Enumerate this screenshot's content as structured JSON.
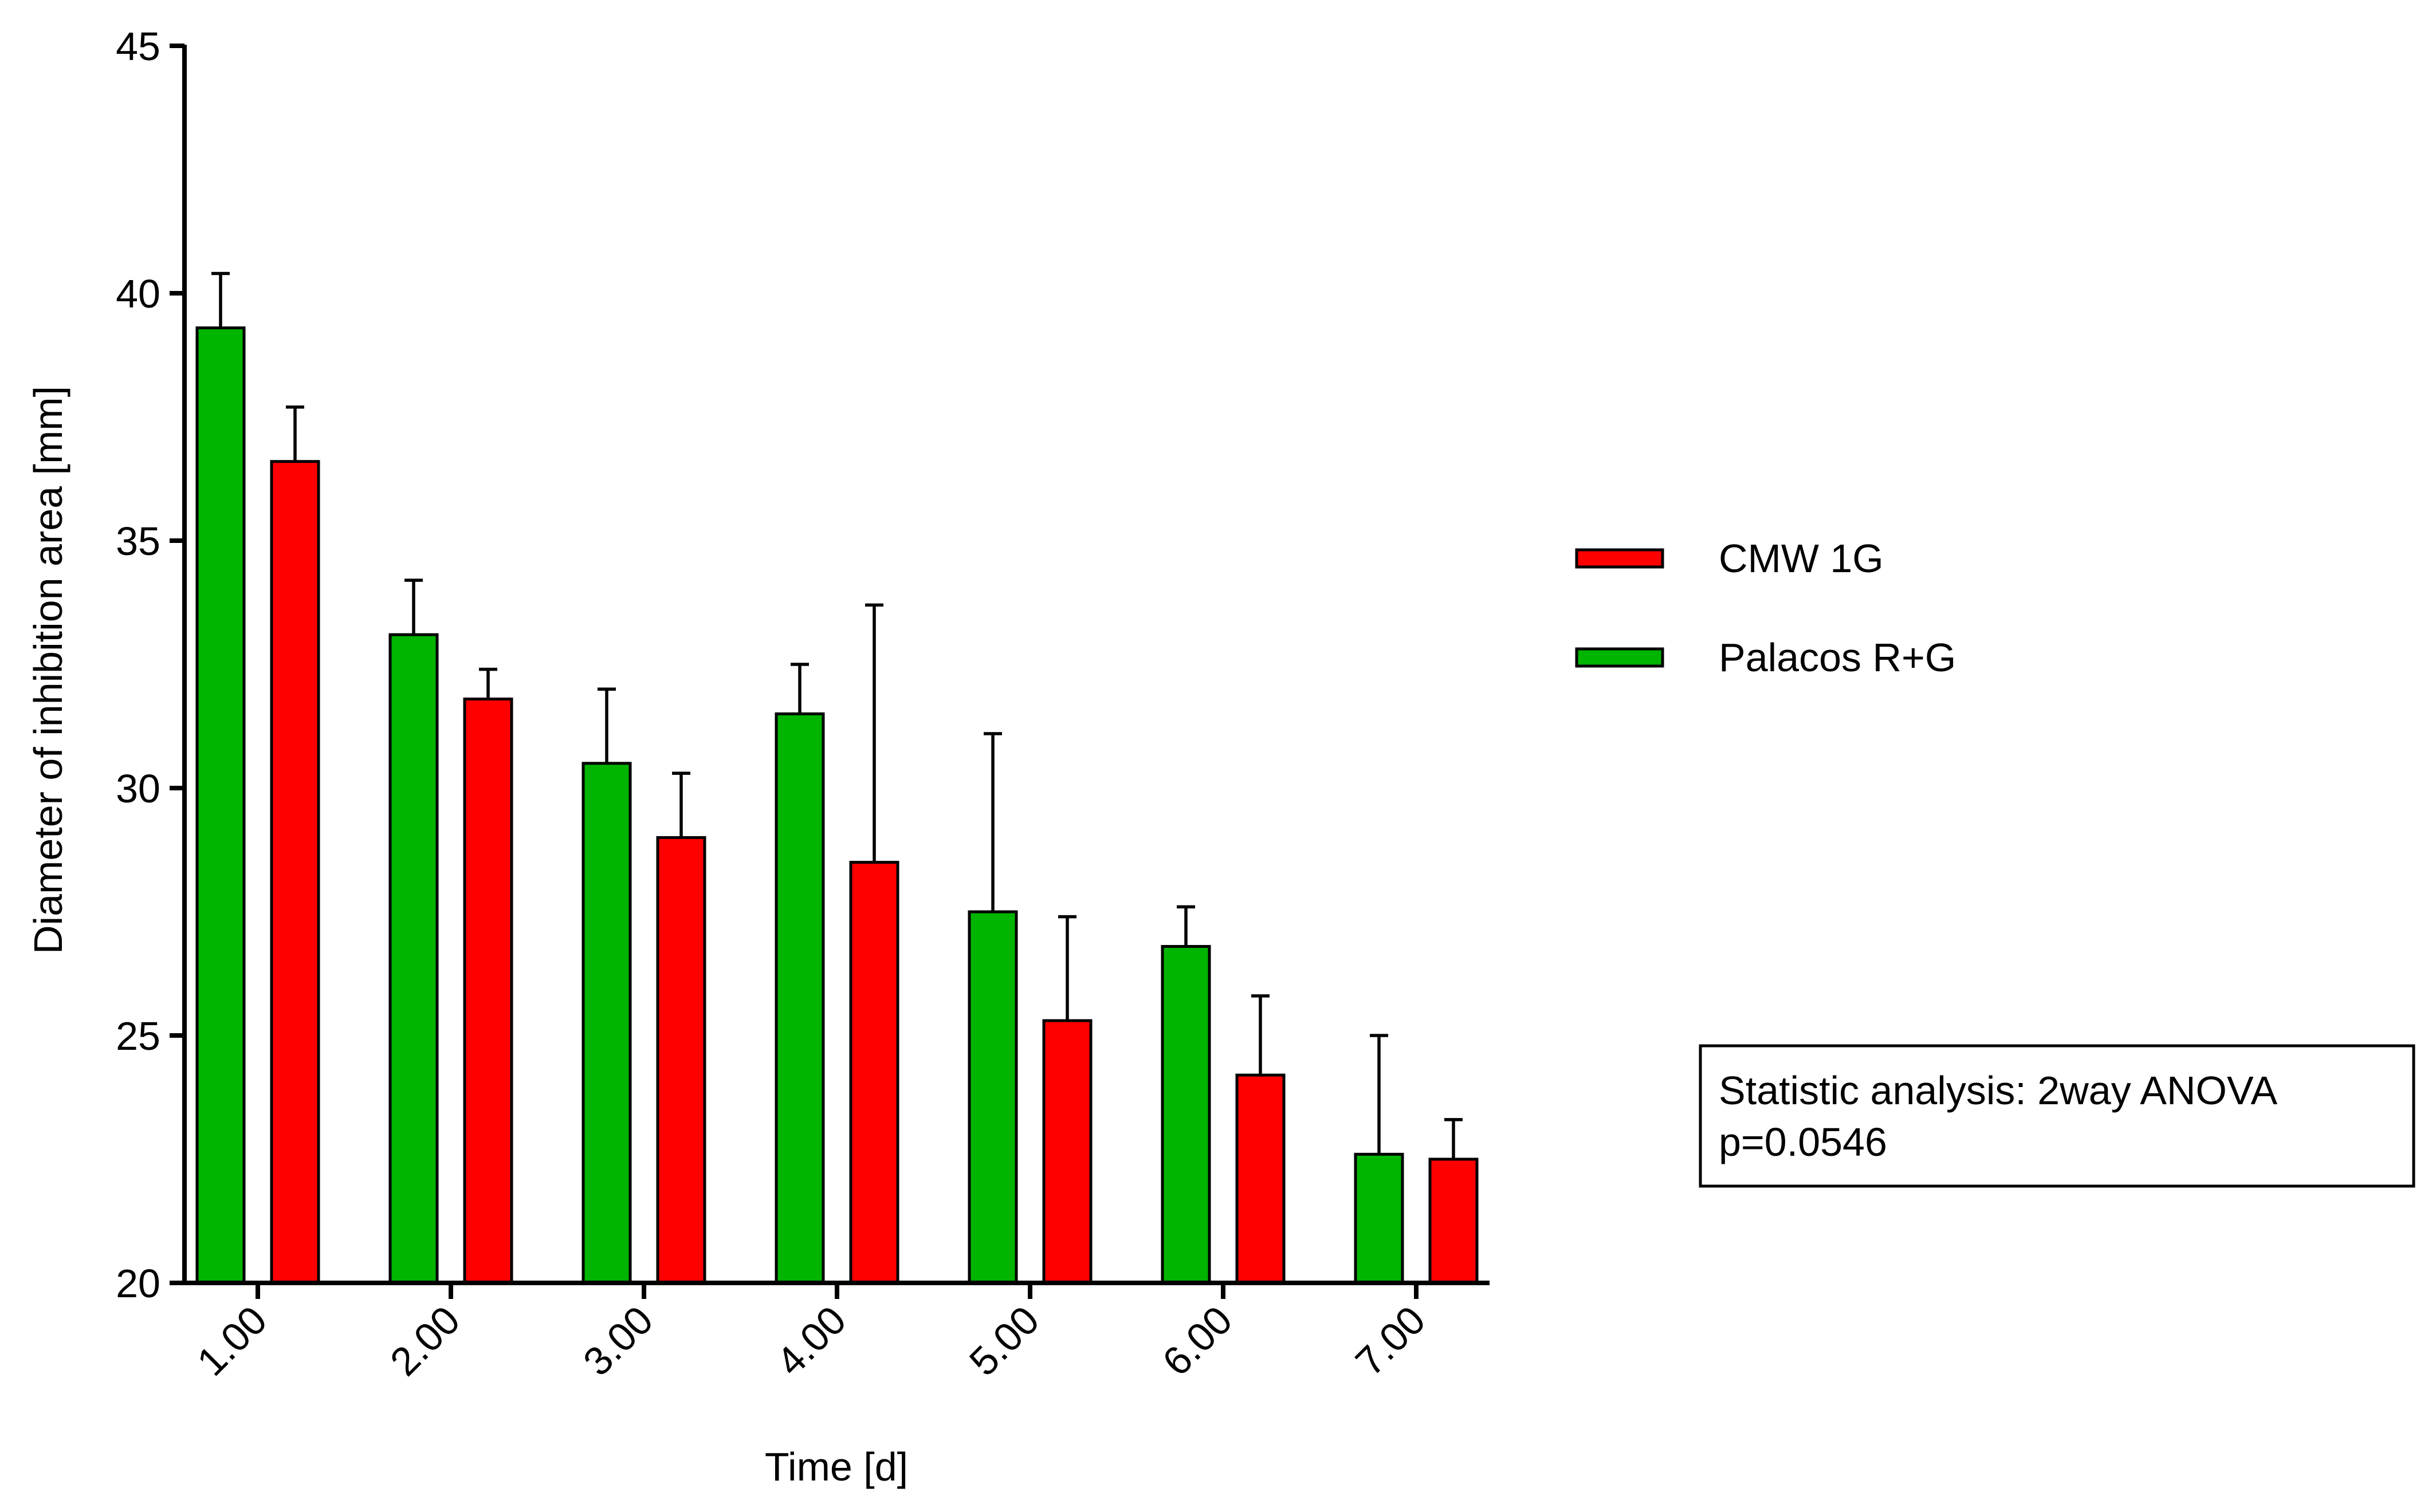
{
  "chart_data": {
    "type": "bar",
    "title": "",
    "xlabel": "Time [d]",
    "ylabel": "Diameter of inhibition area [mm]",
    "ylim": [
      20,
      45
    ],
    "yticks": [
      20,
      25,
      30,
      35,
      40,
      45
    ],
    "categories": [
      "1.00",
      "2.00",
      "3.00",
      "4.00",
      "5.00",
      "6.00",
      "7.00"
    ],
    "series": [
      {
        "name": "Palacos R+G",
        "color": "#00b400",
        "values": [
          39.3,
          33.1,
          30.5,
          31.5,
          27.5,
          26.8,
          22.6
        ],
        "errors": [
          1.1,
          1.1,
          1.5,
          1.0,
          3.6,
          0.8,
          2.4
        ]
      },
      {
        "name": "CMW 1G",
        "color": "#ff0000",
        "values": [
          36.6,
          31.8,
          29.0,
          28.5,
          25.3,
          24.2,
          22.5
        ],
        "errors": [
          1.1,
          0.6,
          1.3,
          5.2,
          2.1,
          1.6,
          0.8
        ]
      }
    ],
    "legend": {
      "position": "right",
      "entries": [
        {
          "label": "CMW 1G",
          "color": "#ff0000"
        },
        {
          "label": "Palacos R+G",
          "color": "#00b400"
        }
      ]
    },
    "annotation": {
      "line1": "Statistic analysis: 2way ANOVA",
      "line2": "p=0.0546"
    },
    "grid": false
  }
}
